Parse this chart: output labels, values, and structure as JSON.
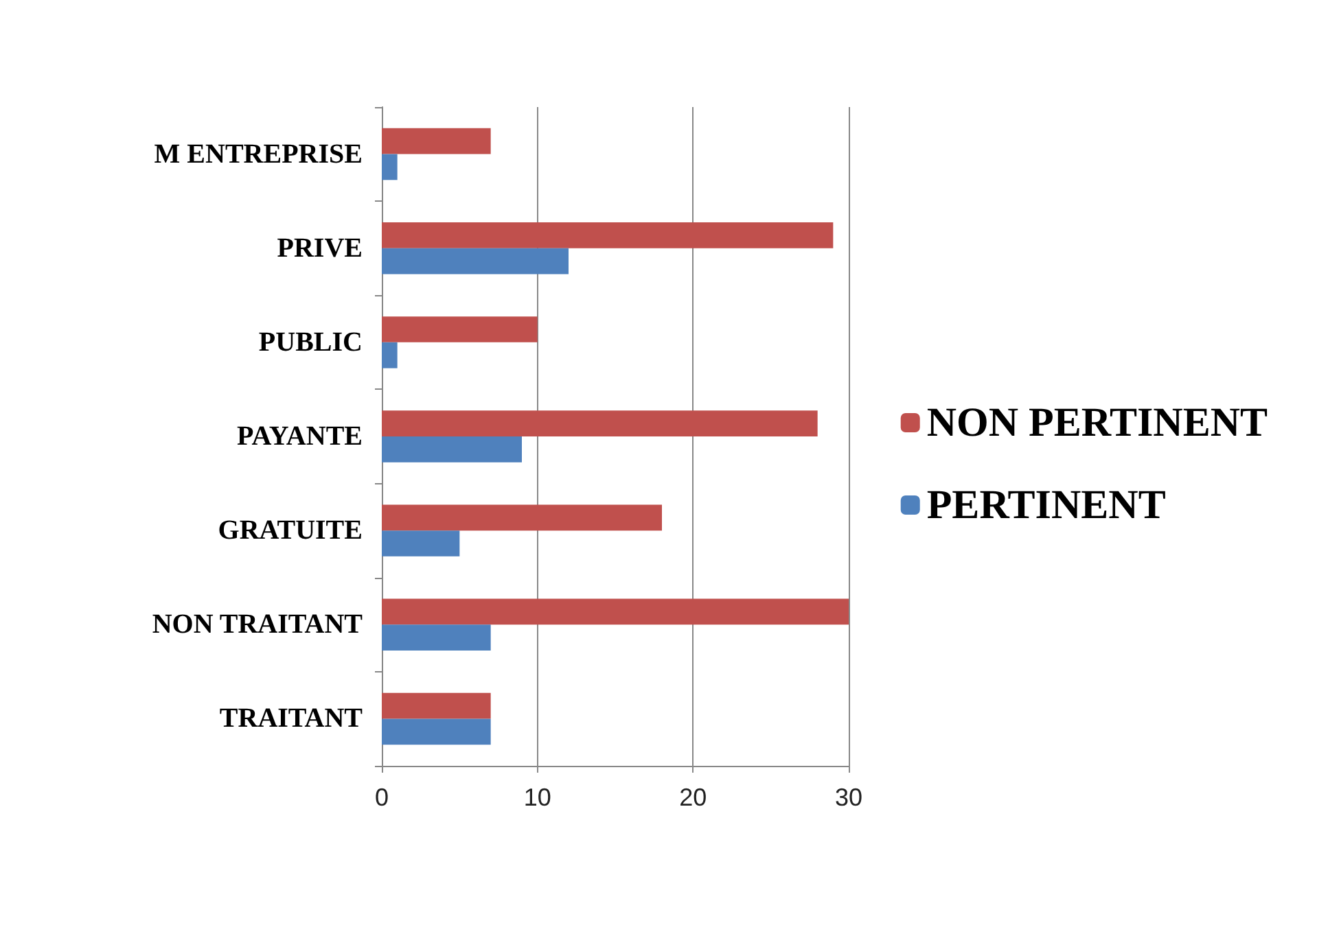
{
  "chart_data": {
    "type": "bar",
    "orientation": "horizontal",
    "categories": [
      "M ENTREPRISE",
      "PRIVE",
      "PUBLIC",
      "PAYANTE",
      "GRATUITE",
      "NON TRAITANT",
      "TRAITANT"
    ],
    "series": [
      {
        "name": "NON PERTINENT",
        "color": "#c0504d",
        "values": [
          7,
          29,
          10,
          28,
          18,
          30,
          7
        ]
      },
      {
        "name": "PERTINENT",
        "color": "#4f81bd",
        "values": [
          1,
          12,
          1,
          9,
          5,
          7,
          7
        ]
      }
    ],
    "xlim": [
      0,
      30
    ],
    "xticks": [
      0,
      10,
      20,
      30
    ],
    "grid": "x",
    "legend": "right"
  }
}
